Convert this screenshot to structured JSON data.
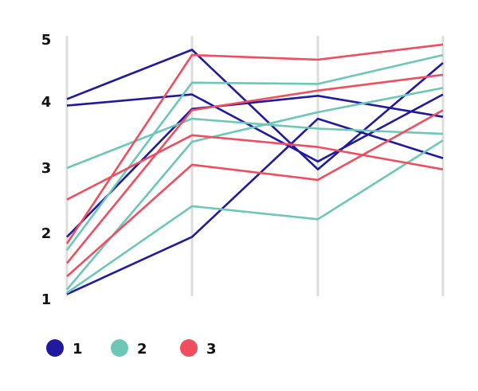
{
  "chart_data": {
    "type": "line",
    "subtype": "parallel-coordinates",
    "title": "",
    "xlabel": "",
    "ylabel": "",
    "axes_count": 4,
    "ylim": [
      1,
      5
    ],
    "y_ticks": [
      "1",
      "2",
      "3",
      "4",
      "5"
    ],
    "grid": true,
    "legend_placement": "bottom-left",
    "legend": [
      {
        "name": "1",
        "color": "#1f1aa0"
      },
      {
        "name": "2",
        "color": "#6cc7b6"
      },
      {
        "name": "3",
        "color": "#f04e5e"
      }
    ],
    "lines": [
      {
        "group": "1",
        "values": [
          4.05,
          4.8,
          2.98,
          4.6
        ]
      },
      {
        "group": "1",
        "values": [
          3.95,
          4.12,
          3.1,
          4.12
        ]
      },
      {
        "group": "1",
        "values": [
          1.95,
          3.9,
          4.1,
          3.78
        ]
      },
      {
        "group": "1",
        "values": [
          1.08,
          1.95,
          3.75,
          3.15
        ]
      },
      {
        "group": "2",
        "values": [
          3.0,
          3.75,
          3.6,
          3.52
        ]
      },
      {
        "group": "2",
        "values": [
          1.75,
          4.3,
          4.28,
          4.72
        ]
      },
      {
        "group": "2",
        "values": [
          1.15,
          3.4,
          3.85,
          4.22
        ]
      },
      {
        "group": "2",
        "values": [
          1.1,
          2.42,
          2.22,
          3.42
        ]
      },
      {
        "group": "3",
        "values": [
          2.52,
          3.5,
          3.32,
          2.98
        ]
      },
      {
        "group": "3",
        "values": [
          1.85,
          4.72,
          4.65,
          4.88
        ]
      },
      {
        "group": "3",
        "values": [
          1.55,
          3.88,
          4.18,
          4.42
        ]
      },
      {
        "group": "3",
        "values": [
          1.35,
          3.05,
          2.82,
          3.88
        ]
      }
    ]
  }
}
